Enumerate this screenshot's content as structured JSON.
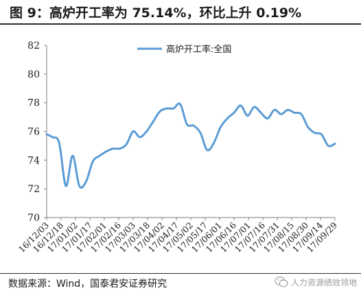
{
  "figure": {
    "title": "图 9：高炉开工率为 75.14%，环比上升 0.19%",
    "source": "数据来源：Wind，国泰君安证券研究",
    "watermark": "人力资源绩效领地"
  },
  "colors": {
    "series_line": "#5b9bd5",
    "axis": "#7f7f7f",
    "text": "#1a1a1a"
  },
  "chart_data": {
    "type": "line",
    "title": "",
    "xlabel": "",
    "ylabel": "",
    "ylim": [
      70,
      82
    ],
    "yticks": [
      70,
      72,
      74,
      76,
      78,
      80,
      82
    ],
    "grid": false,
    "legend_position": "top-center",
    "x_tick_labels": [
      "16/12/03",
      "16/12/18",
      "17/01/02",
      "17/01/17",
      "17/02/01",
      "17/02/16",
      "17/03/03",
      "17/03/18",
      "17/04/02",
      "17/04/17",
      "17/05/02",
      "17/05/17",
      "17/06/01",
      "17/06/16",
      "17/07/01",
      "17/07/16",
      "17/07/31",
      "17/08/15",
      "17/08/30",
      "17/09/14",
      "17/09/29"
    ],
    "series": [
      {
        "name": "高炉开工率:全国",
        "x": [
          "2016-12-03",
          "2016-12-09",
          "2016-12-16",
          "2016-12-23",
          "2016-12-30",
          "2017-01-06",
          "2017-01-13",
          "2017-01-20",
          "2017-01-27",
          "2017-02-03",
          "2017-02-10",
          "2017-02-17",
          "2017-02-24",
          "2017-03-03",
          "2017-03-10",
          "2017-03-17",
          "2017-03-24",
          "2017-03-31",
          "2017-04-07",
          "2017-04-14",
          "2017-04-21",
          "2017-04-28",
          "2017-05-05",
          "2017-05-12",
          "2017-05-19",
          "2017-05-26",
          "2017-06-02",
          "2017-06-09",
          "2017-06-16",
          "2017-06-23",
          "2017-06-30",
          "2017-07-07",
          "2017-07-14",
          "2017-07-21",
          "2017-07-28",
          "2017-08-04",
          "2017-08-11",
          "2017-08-18",
          "2017-08-25",
          "2017-09-01",
          "2017-09-08",
          "2017-09-15",
          "2017-09-22",
          "2017-09-29"
        ],
        "values": [
          75.8,
          75.6,
          75.2,
          72.2,
          74.3,
          72.2,
          72.5,
          73.9,
          74.3,
          74.6,
          74.8,
          74.8,
          75.1,
          76.0,
          75.6,
          76.0,
          76.7,
          77.4,
          77.6,
          77.6,
          77.9,
          76.5,
          76.4,
          75.9,
          74.7,
          75.2,
          76.3,
          76.9,
          77.3,
          77.8,
          77.1,
          77.7,
          77.3,
          76.9,
          77.5,
          77.2,
          77.5,
          77.3,
          77.2,
          76.3,
          75.9,
          75.8,
          75.0,
          75.14
        ]
      }
    ]
  }
}
